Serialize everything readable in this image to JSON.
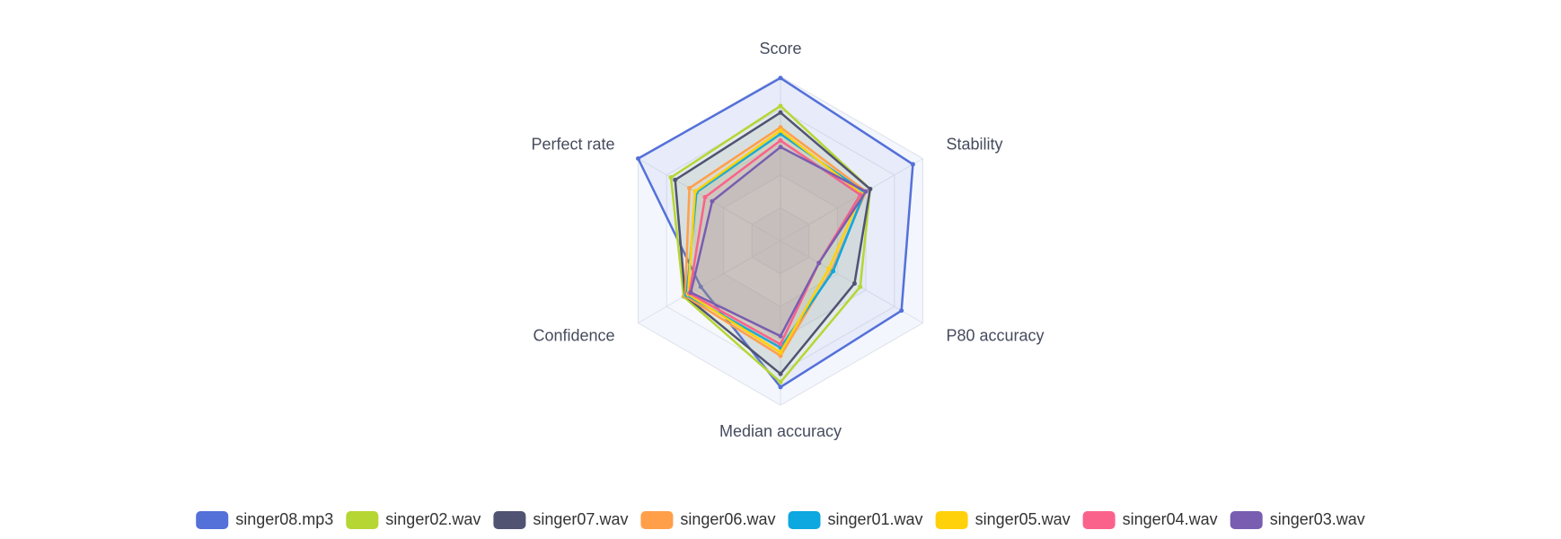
{
  "chart_data": {
    "type": "radar",
    "indicators": [
      "Score",
      "Stability",
      "P80 accuracy",
      "Median accuracy",
      "Confidence",
      "Perfect rate"
    ],
    "rlim": [
      0,
      100
    ],
    "series": [
      {
        "name": "singer08.mp3",
        "color": "#5470d9",
        "values": [
          99,
          93,
          85,
          89,
          56,
          100
        ]
      },
      {
        "name": "singer02.wav",
        "color": "#b6d634",
        "values": [
          82,
          63,
          56,
          86,
          68,
          77
        ]
      },
      {
        "name": "singer07.wav",
        "color": "#505372",
        "values": [
          78,
          63,
          52,
          81,
          67,
          74
        ]
      },
      {
        "name": "singer06.wav",
        "color": "#ff9f4a",
        "values": [
          69,
          60,
          36,
          70,
          67,
          64
        ]
      },
      {
        "name": "singer01.wav",
        "color": "#0ca8df",
        "values": [
          65,
          59,
          37,
          65,
          66,
          59
        ]
      },
      {
        "name": "singer05.wav",
        "color": "#ffd10a",
        "values": [
          67,
          57,
          34,
          68,
          65,
          60
        ]
      },
      {
        "name": "singer04.wav",
        "color": "#fb628b",
        "values": [
          61,
          56,
          27,
          63,
          64,
          53
        ]
      },
      {
        "name": "singer03.wav",
        "color": "#785db0",
        "values": [
          57,
          60,
          27,
          58,
          63,
          48
        ]
      }
    ]
  }
}
